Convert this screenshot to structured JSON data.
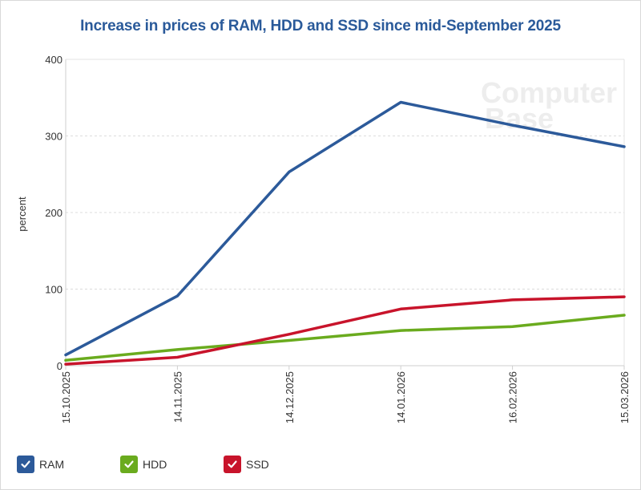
{
  "chart_data": {
    "type": "line",
    "title": "Increase in prices of RAM, HDD and SSD since mid-September 2025",
    "xlabel": "",
    "ylabel": "percent",
    "ylim": [
      0,
      400
    ],
    "yticks": [
      0,
      100,
      200,
      300,
      400
    ],
    "categories": [
      "15.10.2025",
      "14.11.2025",
      "14.12.2025",
      "14.01.2026",
      "16.02.2026",
      "15.03.2026"
    ],
    "series": [
      {
        "name": "RAM",
        "color": "#2c5a9a",
        "values": [
          14,
          91,
          253,
          344,
          314,
          286
        ]
      },
      {
        "name": "HDD",
        "color": "#6aab1e",
        "values": [
          7,
          21,
          33,
          46,
          51,
          66
        ]
      },
      {
        "name": "SSD",
        "color": "#c8142b",
        "values": [
          2,
          11,
          41,
          74,
          86,
          90
        ]
      }
    ],
    "grid": true,
    "legend_position": "bottom-left"
  },
  "watermark": {
    "line1": "Computer",
    "line2": "Base"
  }
}
